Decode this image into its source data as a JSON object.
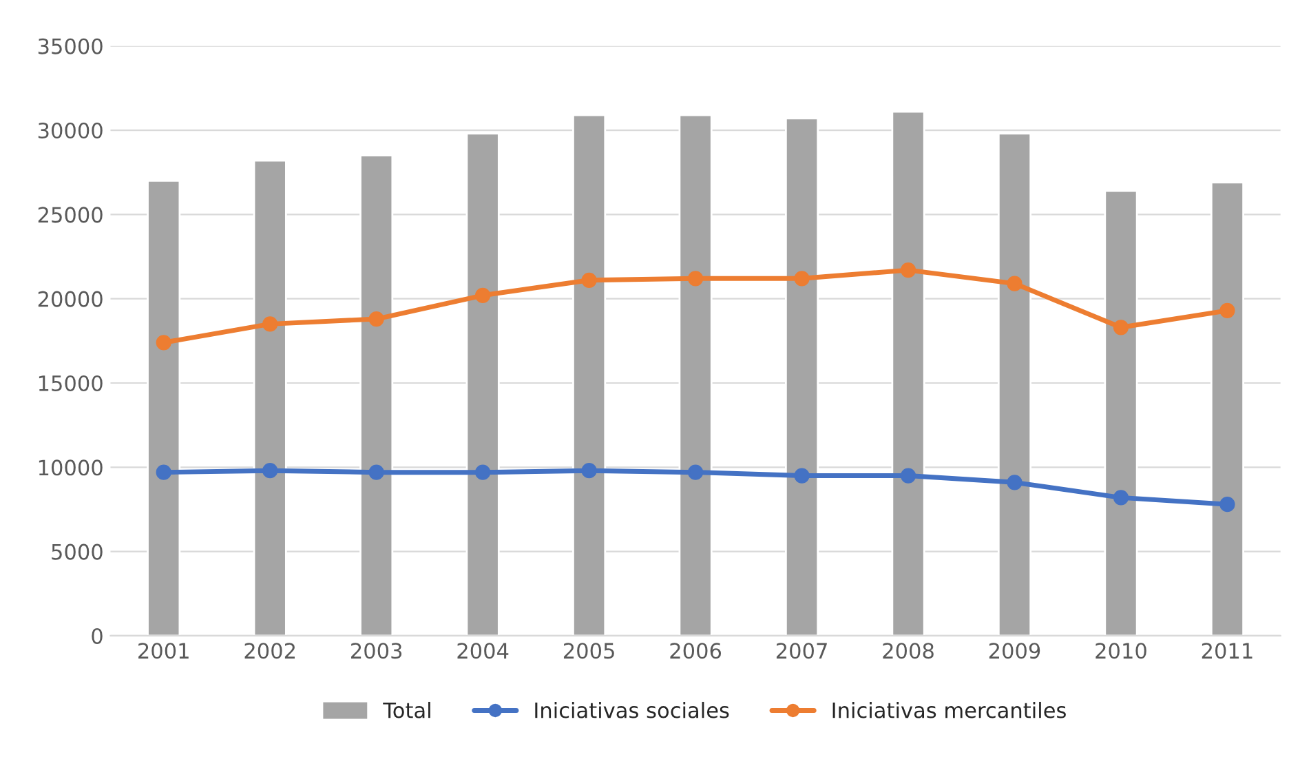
{
  "chart_data": {
    "type": "bar",
    "categories": [
      "2001",
      "2002",
      "2003",
      "2004",
      "2005",
      "2006",
      "2007",
      "2008",
      "2009",
      "2010",
      "2011"
    ],
    "series": [
      {
        "name": "Total",
        "color": "#a5a5a5",
        "values": [
          27000,
          28200,
          28500,
          29800,
          30900,
          30900,
          30700,
          31100,
          29800,
          26400,
          26900
        ]
      },
      {
        "name": "Iniciativas sociales",
        "type": "line",
        "color": "#4472c4",
        "values": [
          9700,
          9800,
          9700,
          9700,
          9800,
          9700,
          9500,
          9500,
          9100,
          8200,
          7800
        ]
      },
      {
        "name": "Iniciativas mercantiles",
        "type": "line",
        "color": "#ed7d31",
        "values": [
          17400,
          18500,
          18800,
          20200,
          21100,
          21200,
          21200,
          21700,
          20900,
          18300,
          19300
        ]
      }
    ],
    "ylim": [
      0,
      35000
    ],
    "yticks": [
      0,
      5000,
      10000,
      15000,
      20000,
      25000,
      30000,
      35000
    ],
    "grid": "y",
    "legend": "bottom",
    "marker": "circle",
    "line_style": "solid"
  }
}
